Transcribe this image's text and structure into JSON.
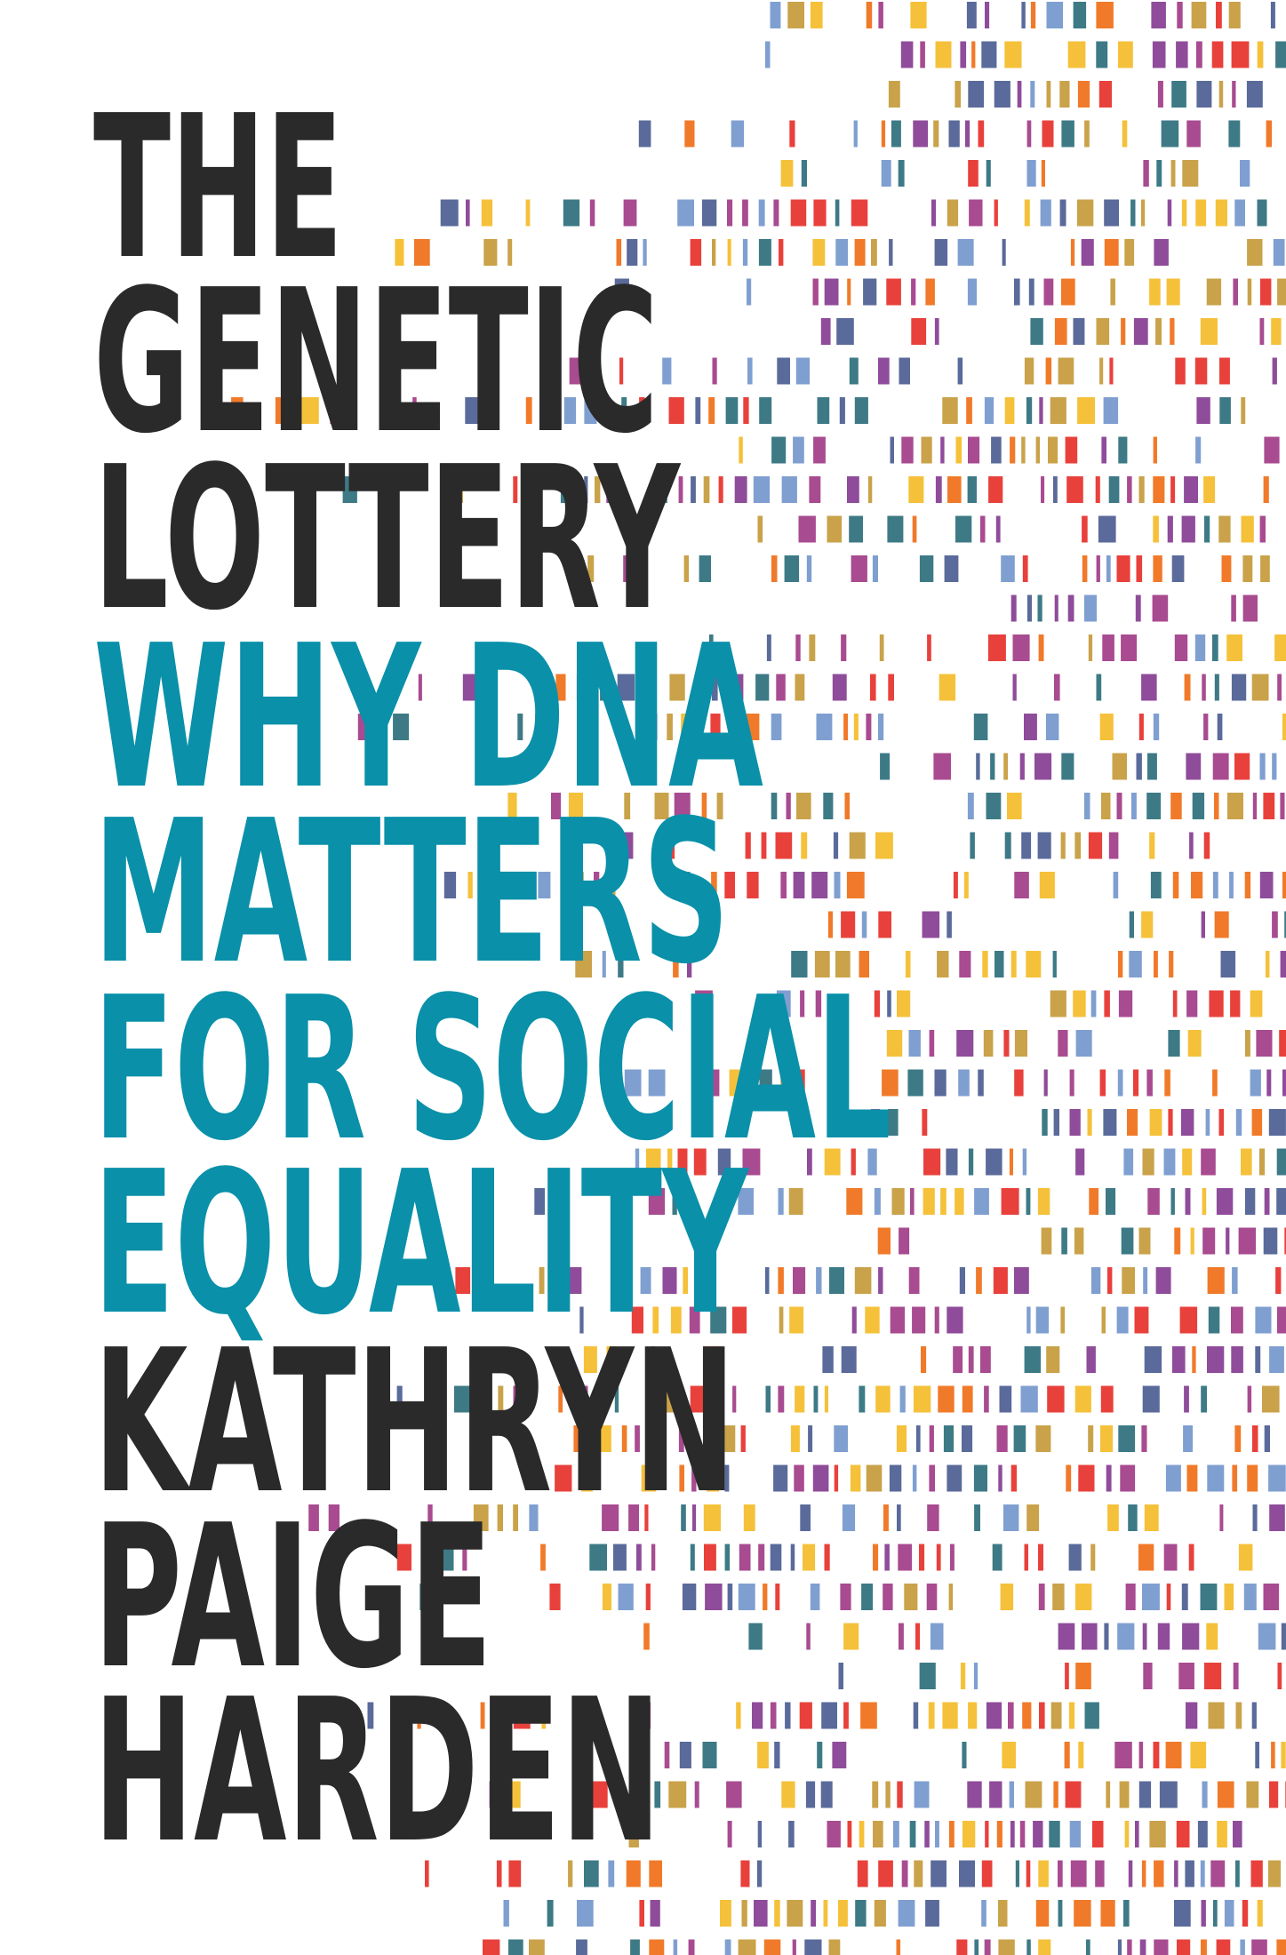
{
  "title": {
    "lines": [
      "THE",
      "GENETIC",
      "LOTTERY"
    ]
  },
  "subtitle": {
    "lines": [
      "WHY DNA",
      "MATTERS",
      "FOR SOCIAL",
      "EQUALITY"
    ]
  },
  "author": {
    "lines": [
      "KATHRYN",
      "PAIGE",
      "HARDEN"
    ]
  }
}
